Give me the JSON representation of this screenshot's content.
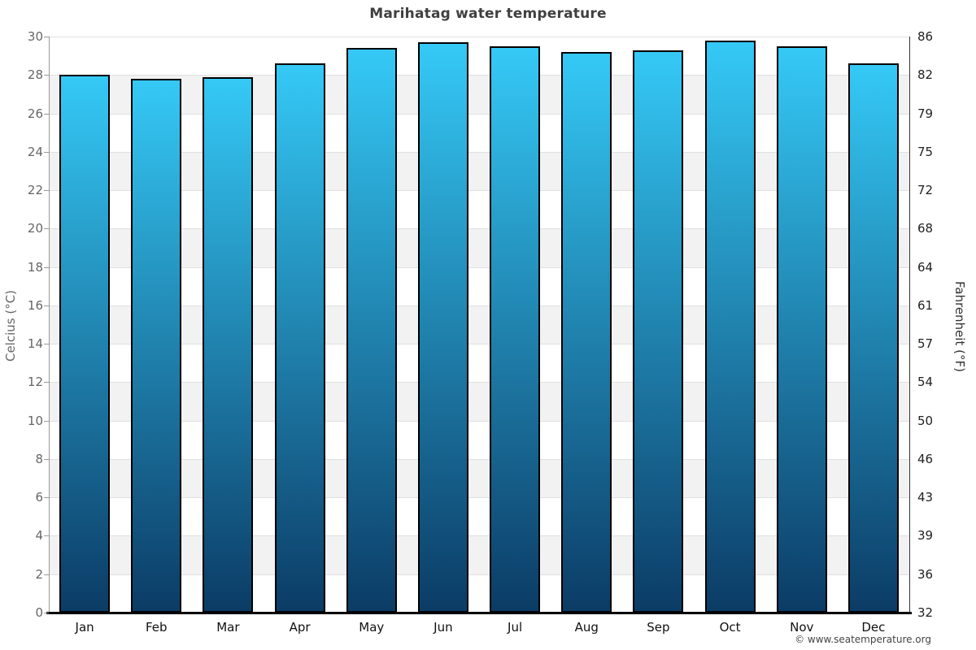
{
  "title": "Marihatag water temperature",
  "footer": {
    "copyright": "© www.seatemperature.org"
  },
  "chart_data": {
    "type": "bar",
    "title": "Marihatag water temperature",
    "categories": [
      "Jan",
      "Feb",
      "Mar",
      "Apr",
      "May",
      "Jun",
      "Jul",
      "Aug",
      "Sep",
      "Oct",
      "Nov",
      "Dec"
    ],
    "values": [
      28.0,
      27.8,
      27.9,
      28.6,
      29.4,
      29.7,
      29.5,
      29.2,
      29.3,
      29.8,
      29.5,
      28.6
    ],
    "unit": "°C",
    "ylabel_left": "Celcius (°C)",
    "ylabel_right": "Fahrenheit (°F)",
    "ylim": [
      0,
      30
    ],
    "y_tick_step": 2,
    "y_left_tick_labels": [
      "0",
      "2",
      "4",
      "6",
      "8",
      "10",
      "12",
      "14",
      "16",
      "18",
      "20",
      "22",
      "24",
      "26",
      "28",
      "30"
    ],
    "y_right_tick_labels": [
      "32",
      "36",
      "39",
      "43",
      "46",
      "50",
      "54",
      "57",
      "61",
      "64",
      "68",
      "72",
      "75",
      "79",
      "82",
      "86"
    ],
    "legend": "none",
    "grid": "horizontal gridlines every 2°C with alternating white/gray bands",
    "colors": {
      "bar_gradient_top": "#35c9f6",
      "bar_gradient_bottom": "#0b3c66",
      "bar_border": "#000000",
      "band_white": "#ffffff",
      "band_gray": "#f2f2f2",
      "gridline": "#e0e0e0",
      "title_text": "#404040",
      "left_tick_text": "#666666",
      "right_tick_text": "#222222"
    }
  }
}
